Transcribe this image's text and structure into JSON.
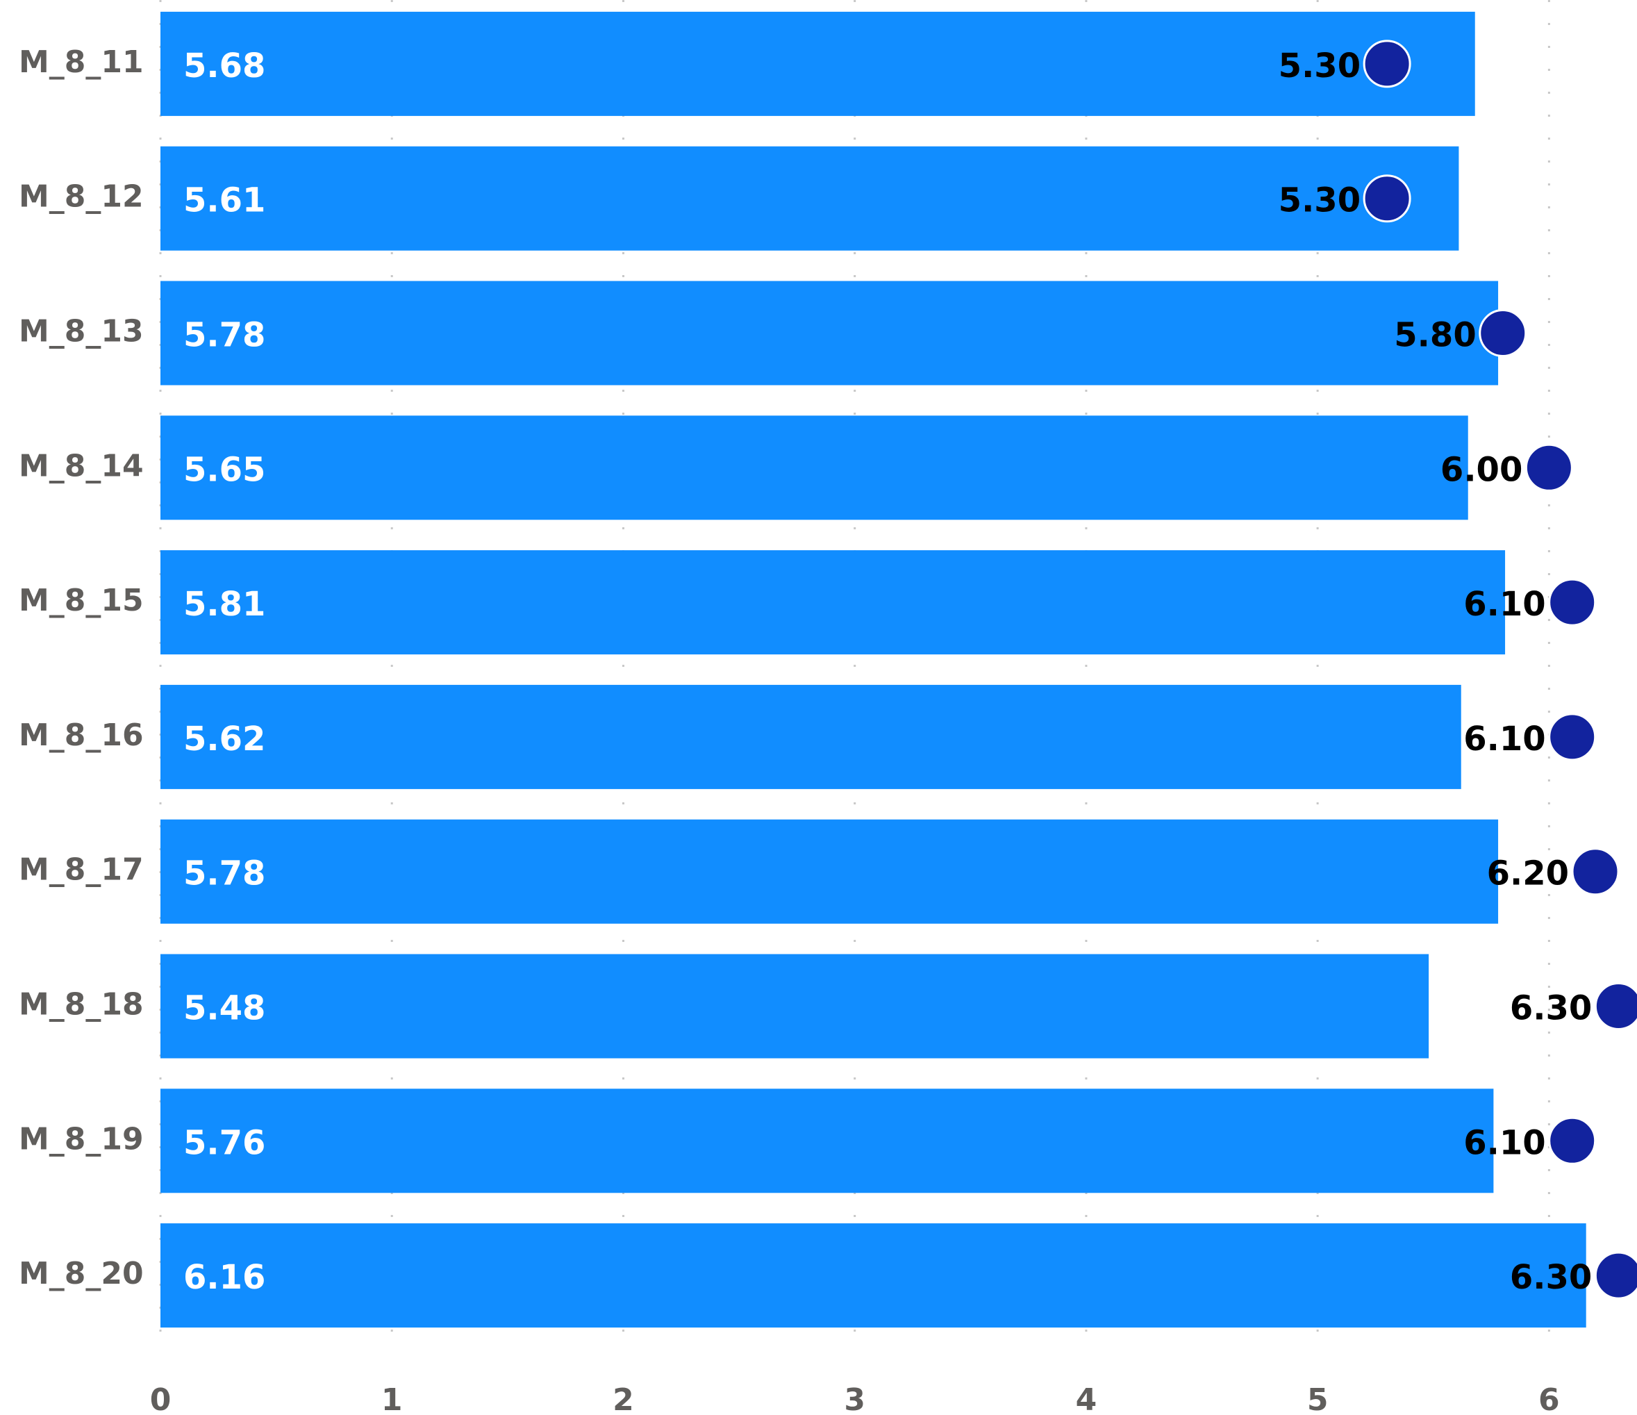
{
  "chart_data": {
    "type": "bar",
    "categories": [
      "M_8_11",
      "M_8_12",
      "M_8_13",
      "M_8_14",
      "M_8_15",
      "M_8_16",
      "M_8_17",
      "M_8_18",
      "M_8_19",
      "M_8_20"
    ],
    "series": [
      {
        "color": "#118dff",
        "values": [
          5.68,
          5.61,
          5.78,
          5.65,
          5.81,
          5.62,
          5.78,
          5.48,
          5.76,
          6.16
        ]
      },
      {
        "color": "#12239e",
        "values": [
          5.3,
          5.3,
          5.8,
          6.0,
          6.1,
          6.1,
          6.2,
          6.3,
          6.1,
          6.3
        ],
        "value_labels": [
          "5.30",
          "5.30",
          "5.80",
          "6.00",
          "6.10",
          "6.10",
          "6.20",
          "6.30",
          "6.10",
          "6.30"
        ]
      }
    ],
    "xlim": [
      0,
      6.38
    ],
    "xticks": [
      0,
      1,
      2,
      3,
      4,
      5,
      6
    ],
    "grid": true
  }
}
